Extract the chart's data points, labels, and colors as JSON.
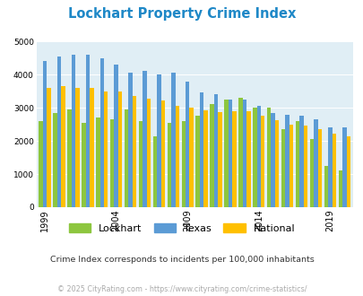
{
  "title": "Lockhart Property Crime Index",
  "subtitle": "Crime Index corresponds to incidents per 100,000 inhabitants",
  "footer": "© 2025 CityRating.com - https://www.cityrating.com/crime-statistics/",
  "years": [
    1999,
    2000,
    2001,
    2002,
    2003,
    2004,
    2005,
    2006,
    2007,
    2008,
    2009,
    2010,
    2011,
    2012,
    2013,
    2014,
    2015,
    2016,
    2017,
    2018,
    2019,
    2020
  ],
  "lockhart": [
    2600,
    2850,
    2950,
    2550,
    2700,
    2650,
    2950,
    2600,
    2150,
    2550,
    2600,
    2750,
    3100,
    3250,
    3300,
    3000,
    3000,
    2350,
    2600,
    2050,
    1250,
    1100
  ],
  "texas": [
    4400,
    4550,
    4600,
    4600,
    4500,
    4300,
    4050,
    4100,
    4000,
    4050,
    3800,
    3450,
    3400,
    3250,
    3250,
    3050,
    2850,
    2800,
    2750,
    2650,
    2400,
    2400
  ],
  "national": [
    3600,
    3650,
    3600,
    3600,
    3500,
    3480,
    3350,
    3270,
    3220,
    3050,
    3000,
    2920,
    2880,
    2900,
    2900,
    2750,
    2620,
    2490,
    2460,
    2350,
    2230,
    2130
  ],
  "lockhart_color": "#8dc63f",
  "texas_color": "#5b9bd5",
  "national_color": "#ffc000",
  "bg_color": "#e0eef5",
  "title_color": "#1e88c7",
  "subtitle_color": "#333333",
  "footer_color": "#aaaaaa",
  "ylim": [
    0,
    5000
  ],
  "yticks": [
    0,
    1000,
    2000,
    3000,
    4000,
    5000
  ],
  "xtick_positions": [
    0,
    5,
    10,
    15,
    20
  ],
  "xtick_labels": [
    "1999",
    "2004",
    "2009",
    "2014",
    "2019"
  ]
}
